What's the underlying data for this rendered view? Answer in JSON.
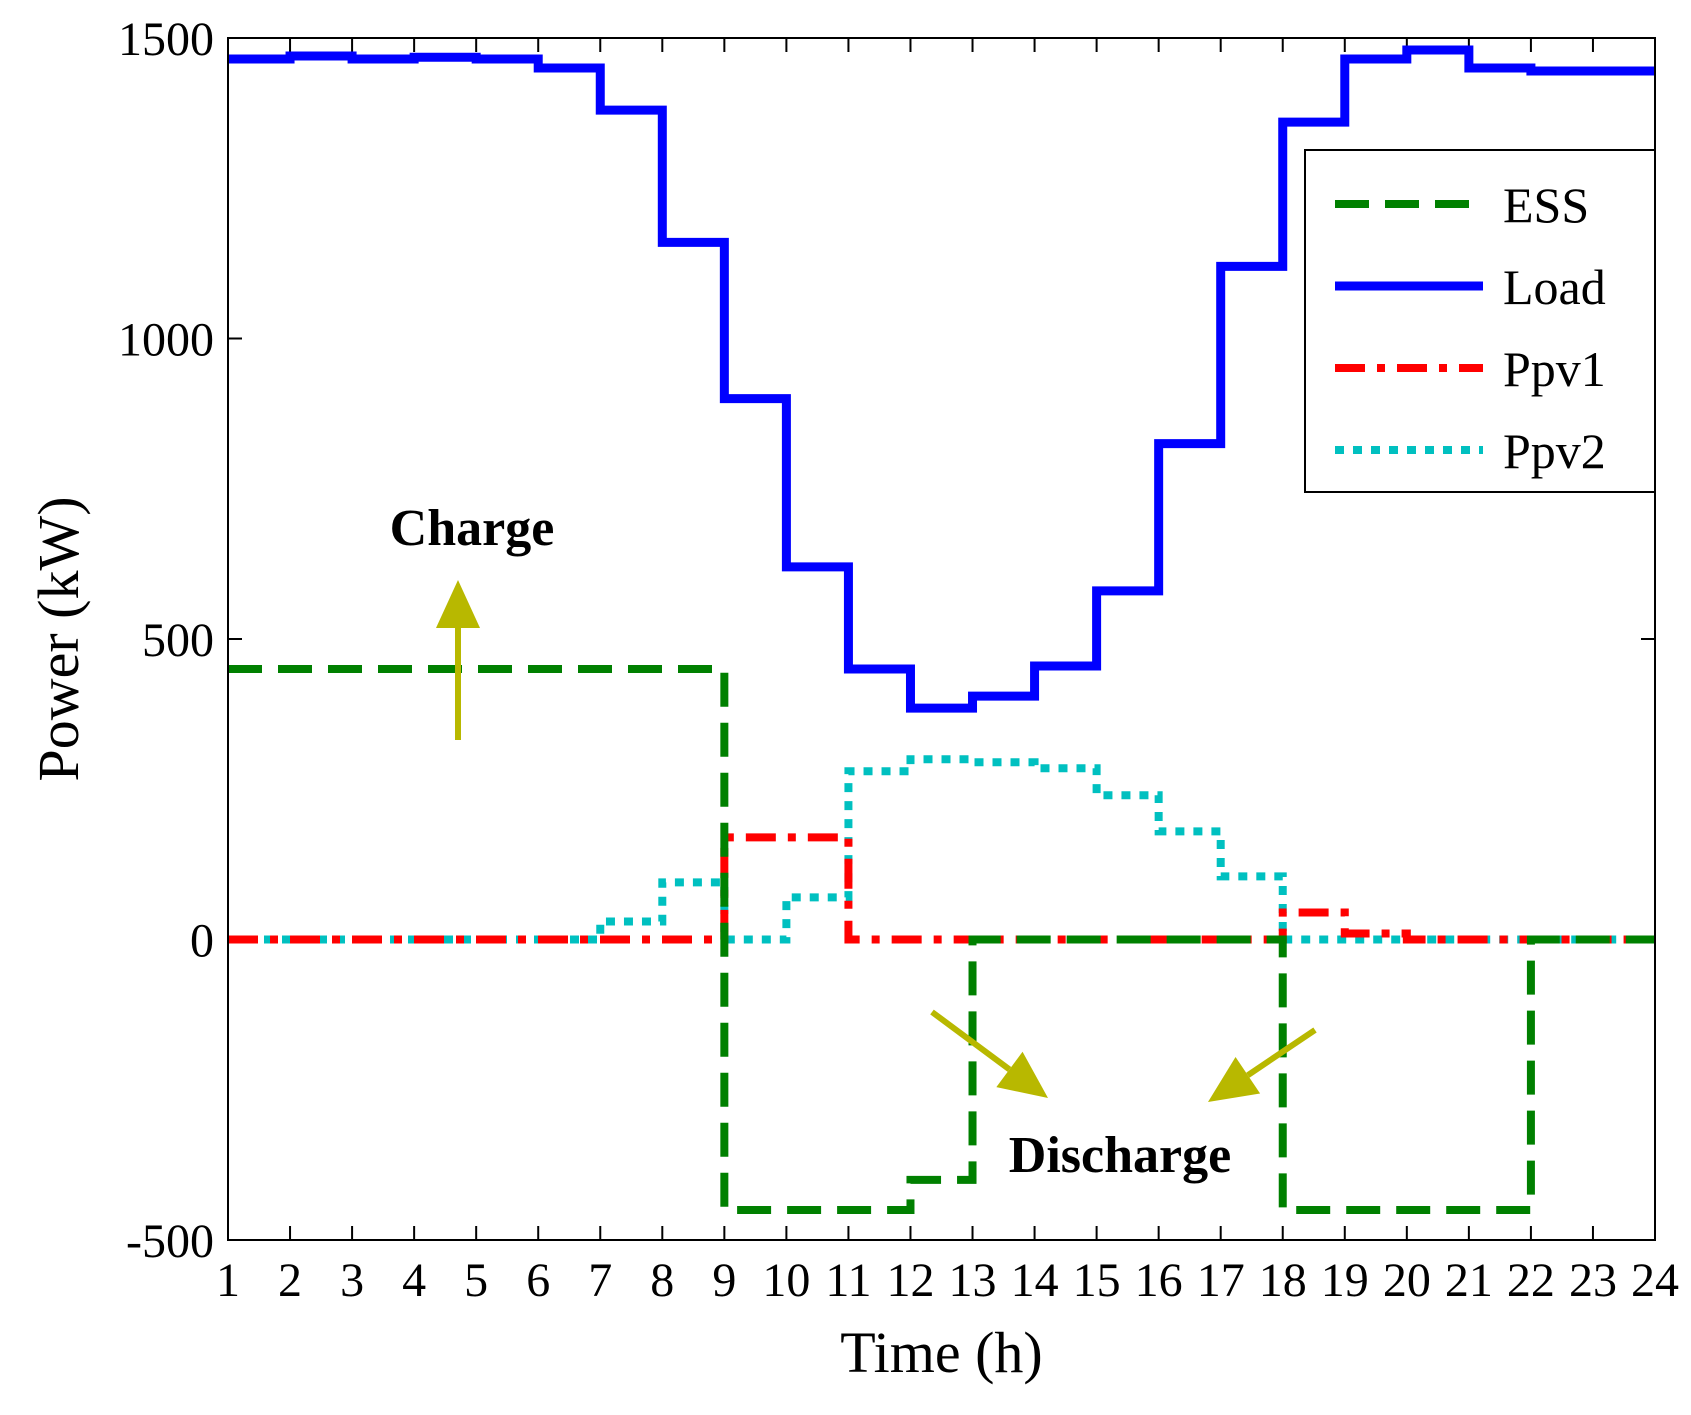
{
  "chart_data": {
    "type": "line",
    "step": true,
    "xlabel": "Time (h)",
    "ylabel": "Power (kW)",
    "xlim": [
      1,
      24
    ],
    "ylim": [
      -500,
      1500
    ],
    "xticks": [
      1,
      2,
      3,
      4,
      5,
      6,
      7,
      8,
      9,
      10,
      11,
      12,
      13,
      14,
      15,
      16,
      17,
      18,
      19,
      20,
      21,
      22,
      23,
      24
    ],
    "yticks": [
      -500,
      0,
      500,
      1000,
      1500
    ],
    "ytick_labels": [
      "-500",
      "0",
      "500",
      "1000",
      "1500"
    ],
    "legend_position": "top-right",
    "series": [
      {
        "name": "ESS",
        "color": "#008000",
        "style": "dashed",
        "x": [
          1,
          2,
          3,
          4,
          5,
          6,
          7,
          8,
          9,
          10,
          11,
          12,
          13,
          14,
          15,
          16,
          17,
          18,
          19,
          20,
          21,
          22,
          23,
          24
        ],
        "values": [
          450,
          450,
          450,
          450,
          450,
          450,
          450,
          450,
          -450,
          -450,
          -450,
          -400,
          0,
          0,
          0,
          0,
          0,
          -450,
          -450,
          -450,
          -450,
          0,
          0,
          0
        ]
      },
      {
        "name": "Load",
        "color": "#0000ff",
        "style": "solid",
        "x": [
          1,
          2,
          3,
          4,
          5,
          6,
          7,
          8,
          9,
          10,
          11,
          12,
          13,
          14,
          15,
          16,
          17,
          18,
          19,
          20,
          21,
          22,
          23,
          24
        ],
        "values": [
          1465,
          1470,
          1465,
          1468,
          1465,
          1450,
          1380,
          1160,
          900,
          620,
          450,
          385,
          405,
          455,
          580,
          825,
          1120,
          1360,
          1465,
          1480,
          1450,
          1445,
          1445,
          1445
        ]
      },
      {
        "name": "Ppv1",
        "color": "#ff0000",
        "style": "dashdot",
        "x": [
          1,
          2,
          3,
          4,
          5,
          6,
          7,
          8,
          9,
          10,
          11,
          12,
          13,
          14,
          15,
          16,
          17,
          18,
          19,
          20,
          21,
          22,
          23,
          24
        ],
        "values": [
          0,
          0,
          0,
          0,
          0,
          0,
          0,
          0,
          170,
          170,
          0,
          0,
          0,
          0,
          0,
          0,
          0,
          45,
          10,
          0,
          0,
          0,
          0,
          0
        ]
      },
      {
        "name": "Ppv2",
        "color": "#00c0c0",
        "style": "dotted",
        "x": [
          1,
          2,
          3,
          4,
          5,
          6,
          7,
          8,
          9,
          10,
          11,
          12,
          13,
          14,
          15,
          16,
          17,
          18,
          19,
          20,
          21,
          22,
          23,
          24
        ],
        "values": [
          0,
          0,
          0,
          0,
          0,
          0,
          30,
          95,
          0,
          70,
          280,
          300,
          295,
          285,
          240,
          180,
          105,
          0,
          0,
          0,
          0,
          0,
          0,
          0
        ]
      }
    ],
    "annotations": [
      {
        "text": "Charge"
      },
      {
        "text": "Discharge"
      }
    ],
    "annotation_arrow_color": "#b8b800"
  }
}
